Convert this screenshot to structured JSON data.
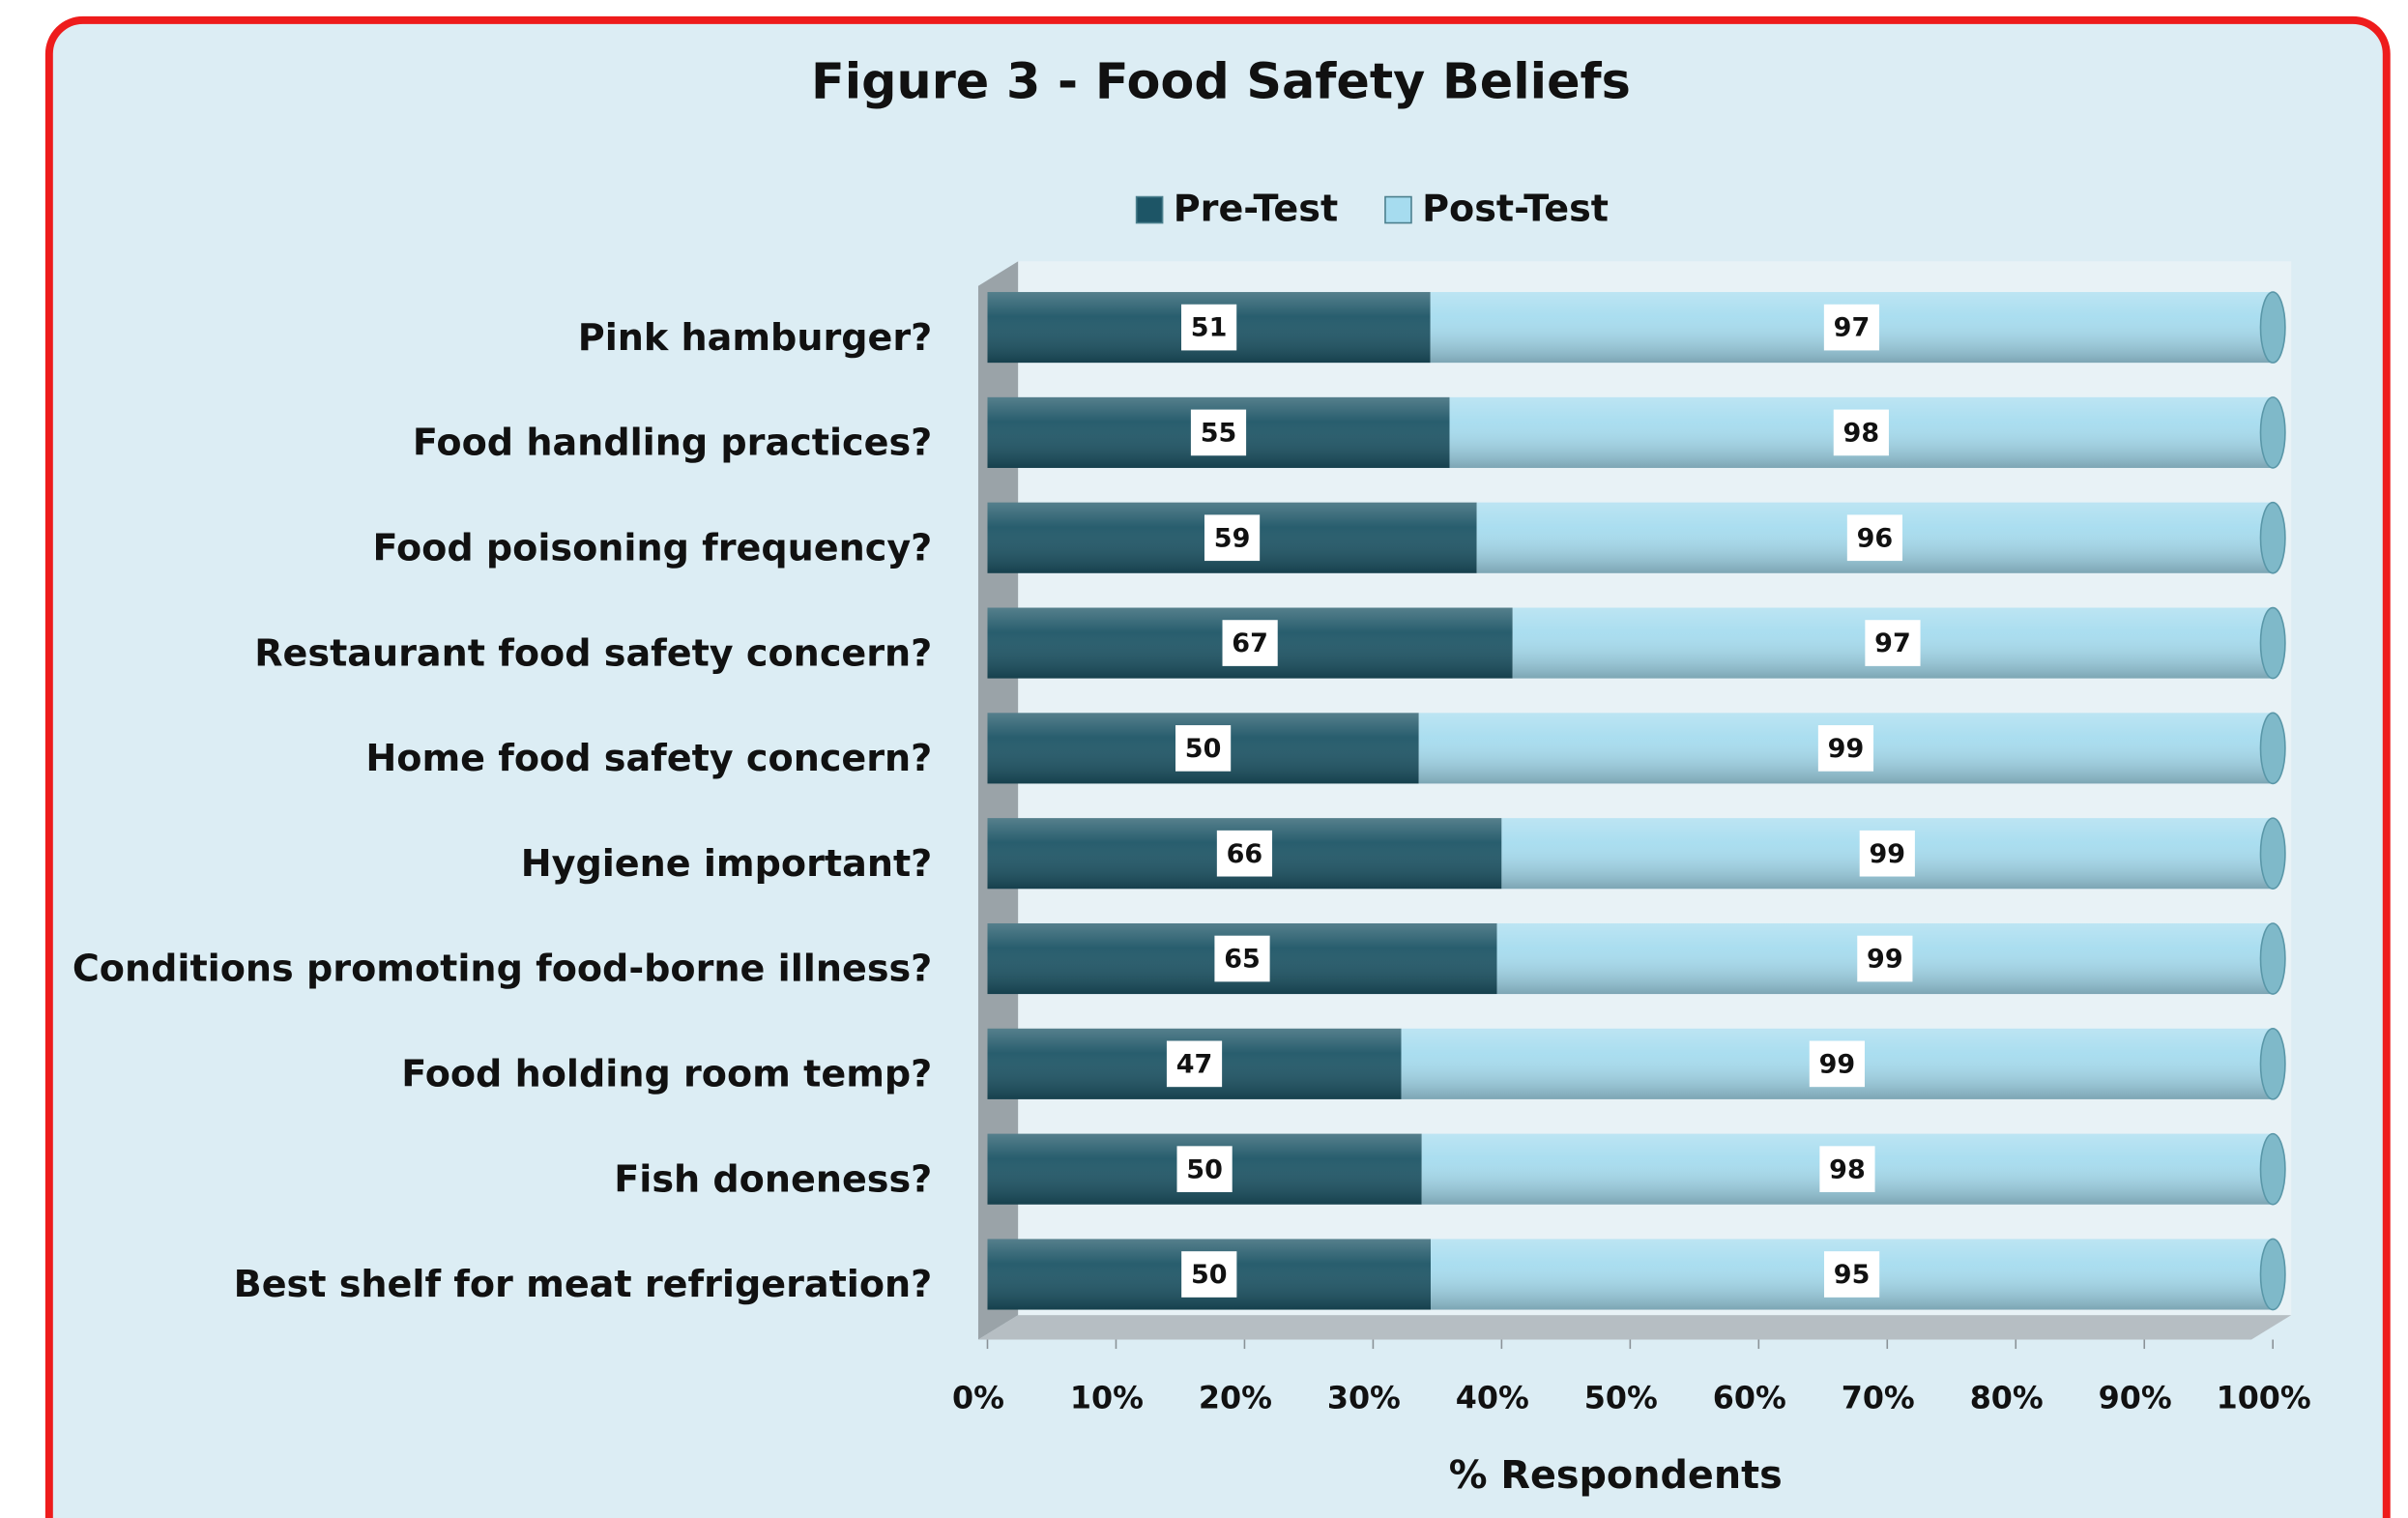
{
  "chart_data": {
    "type": "bar",
    "orientation": "horizontal",
    "stack": "percent",
    "title": "Figure 3 -  Food Safety Beliefs",
    "xlabel": "%  Respondents",
    "categories": [
      "Pink hamburger?",
      "Food handling practices?",
      "Food poisoning frequency?",
      "Restaurant food safety concern?",
      "Home food safety concern?",
      "Hygiene important?",
      "Conditions promoting food-borne illness?",
      "Food holding room temp?",
      "Fish doneness?",
      "Best shelf for meat refrigeration?"
    ],
    "series": [
      {
        "name": "Pre-Test",
        "color": "#1d5566",
        "values": [
          51,
          55,
          59,
          67,
          50,
          66,
          65,
          47,
          50,
          50
        ]
      },
      {
        "name": "Post-Test",
        "color": "#a6dcef",
        "values": [
          97,
          98,
          96,
          97,
          99,
          99,
          99,
          99,
          98,
          95
        ]
      }
    ],
    "xlim": [
      0,
      100
    ],
    "xticks": [
      {
        "value": 0,
        "label": "0%"
      },
      {
        "value": 10,
        "label": "10%"
      },
      {
        "value": 20,
        "label": "20%"
      },
      {
        "value": 30,
        "label": "30%"
      },
      {
        "value": 40,
        "label": "40%"
      },
      {
        "value": 50,
        "label": "50%"
      },
      {
        "value": 60,
        "label": "60%"
      },
      {
        "value": 70,
        "label": "70%"
      },
      {
        "value": 80,
        "label": "80%"
      },
      {
        "value": 90,
        "label": "90%"
      },
      {
        "value": 100,
        "label": "100%"
      }
    ],
    "legend": "top",
    "grid": false
  }
}
